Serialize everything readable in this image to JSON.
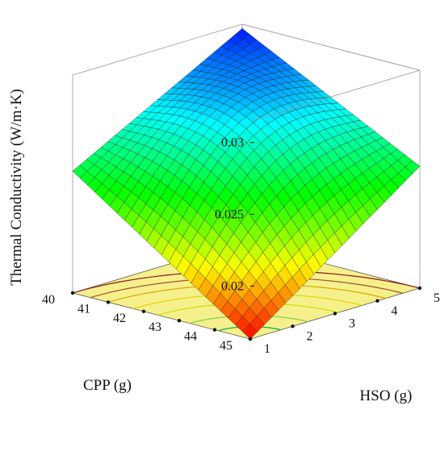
{
  "chart_data": {
    "type": "surface",
    "zlabel": "Thermal Conductivity (W/m·K)",
    "xlabel": "CPP (g)",
    "ylabel": "HSO (g)",
    "x_ticks": [
      40,
      41,
      42,
      43,
      44,
      45
    ],
    "y_ticks": [
      1,
      2,
      3,
      4,
      5
    ],
    "z_ticks": [
      0.02,
      0.025,
      0.03
    ],
    "xlim": [
      40,
      45
    ],
    "ylim": [
      1,
      5
    ],
    "zlim": [
      0.0163,
      0.0315
    ],
    "colormap": [
      "#ff0000",
      "#ffff00",
      "#00ff00",
      "#00ffff",
      "#0000ff"
    ],
    "surface_corners": [
      {
        "cpp": 40,
        "hso": 1,
        "value": 0.0248
      },
      {
        "cpp": 40,
        "hso": 5,
        "value": 0.0312
      },
      {
        "cpp": 45,
        "hso": 1,
        "value": 0.0163
      },
      {
        "cpp": 45,
        "hso": 5,
        "value": 0.0248
      }
    ],
    "floor_color": "#f6f08c",
    "grid_lines": true
  }
}
